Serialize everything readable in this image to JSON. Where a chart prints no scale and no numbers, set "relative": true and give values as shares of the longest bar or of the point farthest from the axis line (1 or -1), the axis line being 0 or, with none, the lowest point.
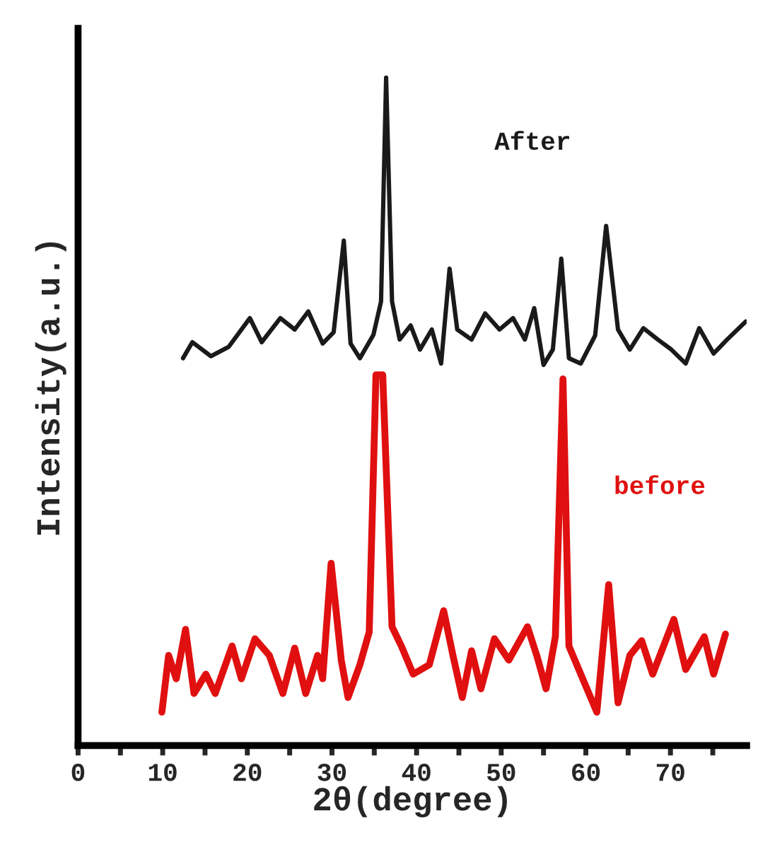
{
  "chart_data": {
    "type": "line",
    "relative": true,
    "xlabel": "2θ(degree)",
    "ylabel": "Intensity(a.u.)",
    "xlim": [
      0,
      79
    ],
    "xticks": [
      0,
      {
        "value": 5,
        "label": null
      },
      10,
      {
        "value": 15,
        "label": null
      },
      20,
      {
        "value": 25,
        "label": null
      },
      30,
      {
        "value": 35,
        "label": null
      },
      40,
      {
        "value": 45,
        "label": null
      },
      50,
      {
        "value": 55,
        "label": null
      },
      60,
      {
        "value": 65,
        "label": null
      },
      70,
      {
        "value": 75,
        "label": null
      }
    ],
    "grid": false,
    "legend": false,
    "marker": "none",
    "line_style": "solid",
    "series": [
      {
        "name": "After",
        "color": "#1a1a1a",
        "x": [
          12.4,
          13.5,
          15.7,
          17.8,
          20.3,
          21.7,
          23.9,
          25.6,
          27.2,
          28.9,
          30.2,
          31.4,
          32.2,
          33.3,
          34.9,
          35.8,
          36.4,
          37.1,
          38.0,
          39.3,
          40.4,
          41.8,
          42.9,
          43.9,
          44.8,
          46.5,
          48.1,
          49.8,
          51.4,
          52.8,
          53.9,
          55.0,
          56.1,
          57.1,
          58.0,
          59.4,
          61.1,
          62.4,
          63.8,
          65.2,
          66.8,
          68.5,
          70.1,
          71.8,
          73.4,
          75.1,
          76.7,
          78.9
        ],
        "values": [
          0.58,
          0.604,
          0.583,
          0.597,
          0.64,
          0.604,
          0.64,
          0.623,
          0.65,
          0.602,
          0.619,
          0.756,
          0.602,
          0.58,
          0.615,
          0.665,
          1.0,
          0.665,
          0.608,
          0.629,
          0.593,
          0.623,
          0.572,
          0.714,
          0.623,
          0.608,
          0.647,
          0.623,
          0.64,
          0.608,
          0.655,
          0.57,
          0.593,
          0.729,
          0.58,
          0.572,
          0.614,
          0.778,
          0.623,
          0.593,
          0.625,
          0.608,
          0.593,
          0.572,
          0.625,
          0.587,
          0.608,
          0.635
        ]
      },
      {
        "name": "before",
        "color": "#e01010",
        "x": [
          9.9,
          10.7,
          11.6,
          12.7,
          13.7,
          15.1,
          16.2,
          18.2,
          19.3,
          20.9,
          22.6,
          24.2,
          25.6,
          26.9,
          28.3,
          28.9,
          29.9,
          31.1,
          31.9,
          33.3,
          34.4,
          35.2,
          36.0,
          37.1,
          38.2,
          39.6,
          41.5,
          43.2,
          44.3,
          45.4,
          46.5,
          47.6,
          49.2,
          50.9,
          53.1,
          54.2,
          55.3,
          56.4,
          57.3,
          58.0,
          59.4,
          61.3,
          62.7,
          63.8,
          65.2,
          66.6,
          67.9,
          70.4,
          71.8,
          74.0,
          75.1,
          76.5
        ],
        "values": [
          0.05,
          0.135,
          0.1,
          0.174,
          0.078,
          0.107,
          0.078,
          0.149,
          0.1,
          0.16,
          0.135,
          0.078,
          0.146,
          0.078,
          0.135,
          0.1,
          0.273,
          0.128,
          0.072,
          0.121,
          0.17,
          0.555,
          0.555,
          0.178,
          0.149,
          0.107,
          0.121,
          0.202,
          0.135,
          0.072,
          0.142,
          0.085,
          0.16,
          0.128,
          0.178,
          0.135,
          0.085,
          0.163,
          0.549,
          0.149,
          0.107,
          0.05,
          0.241,
          0.064,
          0.135,
          0.157,
          0.107,
          0.189,
          0.114,
          0.163,
          0.107,
          0.167
        ]
      }
    ]
  }
}
